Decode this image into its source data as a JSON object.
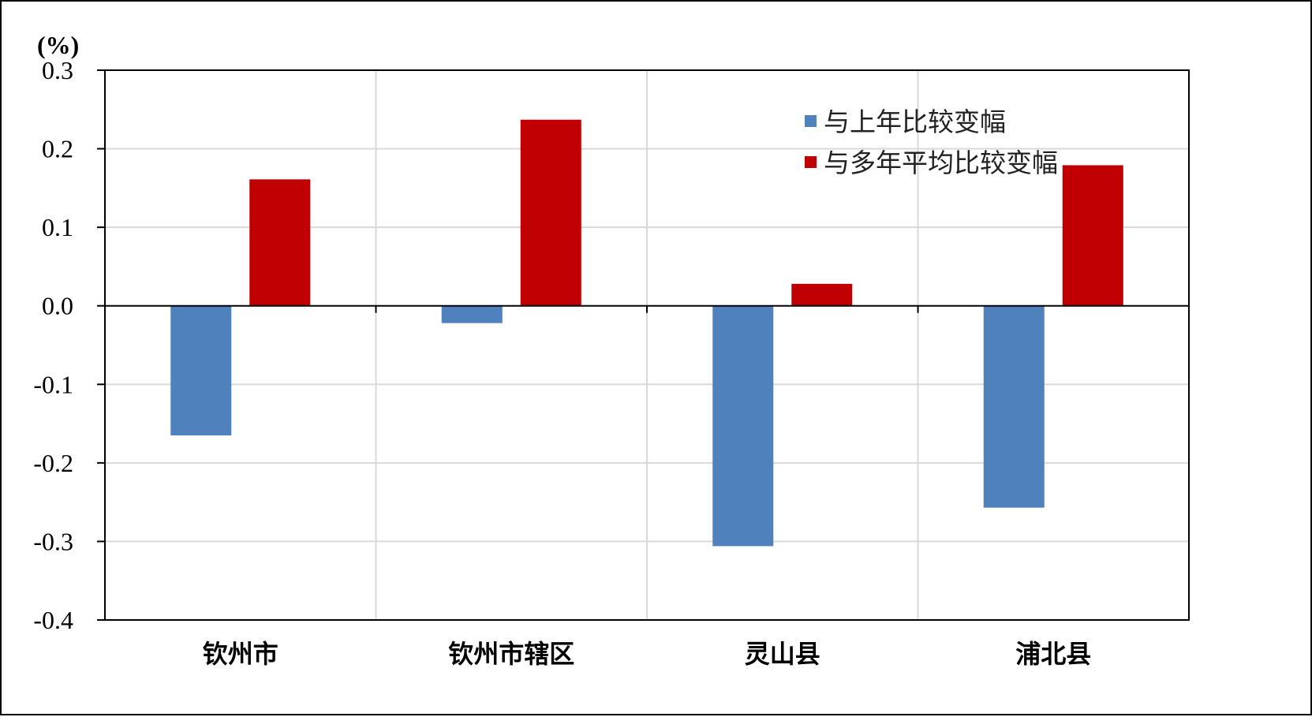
{
  "chart_data": {
    "type": "bar",
    "unit_label": "(%)",
    "categories": [
      "钦州市",
      "钦州市辖区",
      "灵山县",
      "浦北县"
    ],
    "series": [
      {
        "name": "与上年比较变幅",
        "color": "#4F81BD",
        "values": [
          -0.165,
          -0.022,
          -0.306,
          -0.257
        ]
      },
      {
        "name": "与多年平均比较变幅",
        "color": "#C00000",
        "values": [
          0.161,
          0.237,
          0.028,
          0.179
        ]
      }
    ],
    "ylim": [
      -0.4,
      0.3
    ],
    "yticks": [
      0.3,
      0.2,
      0.1,
      0.0,
      -0.1,
      -0.2,
      -0.3,
      -0.4
    ],
    "ytick_labels": [
      "0.3",
      "0.2",
      "0.1",
      "0.0",
      "-0.1",
      "-0.2",
      "-0.3",
      "-0.4"
    ],
    "grid": true,
    "legend_position": "top-right"
  }
}
